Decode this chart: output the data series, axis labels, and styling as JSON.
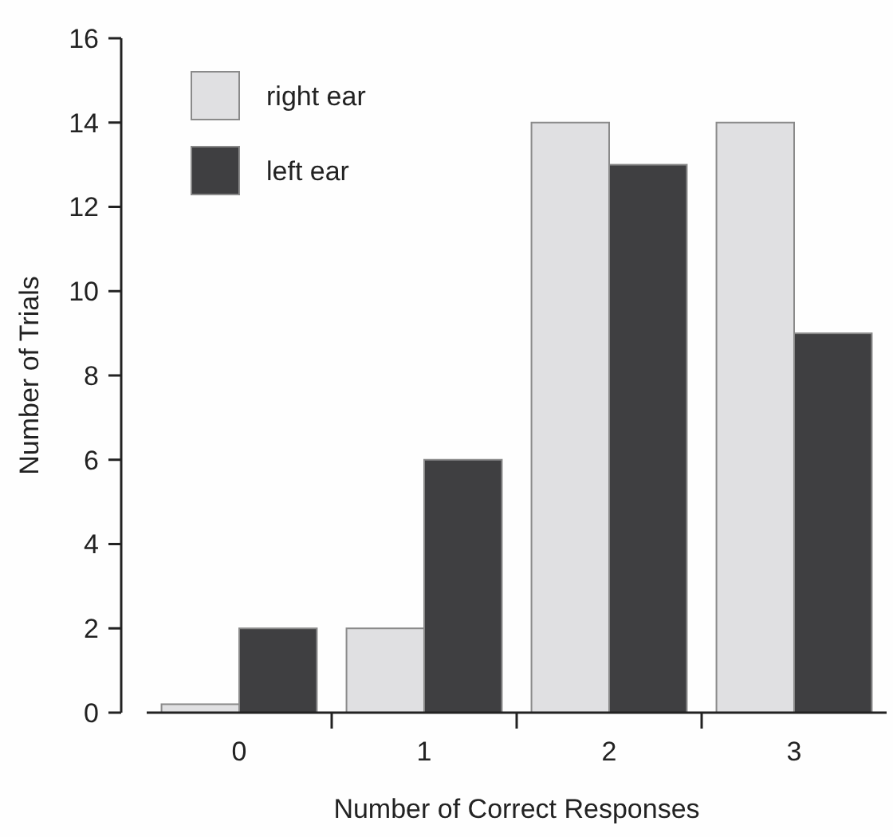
{
  "chart_data": {
    "type": "bar",
    "xlabel": "Number of Correct Responses",
    "ylabel": "Number of Trials",
    "categories": [
      "0",
      "1",
      "2",
      "3"
    ],
    "series": [
      {
        "name": "right ear",
        "color": "#e0e0e2",
        "values": [
          0.2,
          2,
          14,
          14
        ]
      },
      {
        "name": "left ear",
        "color": "#3f3f41",
        "values": [
          2,
          6,
          13,
          9
        ]
      }
    ],
    "ylim": [
      0,
      16
    ],
    "yticks": [
      0,
      2,
      4,
      6,
      8,
      10,
      12,
      14,
      16
    ],
    "legend": "top left",
    "grid": false
  }
}
